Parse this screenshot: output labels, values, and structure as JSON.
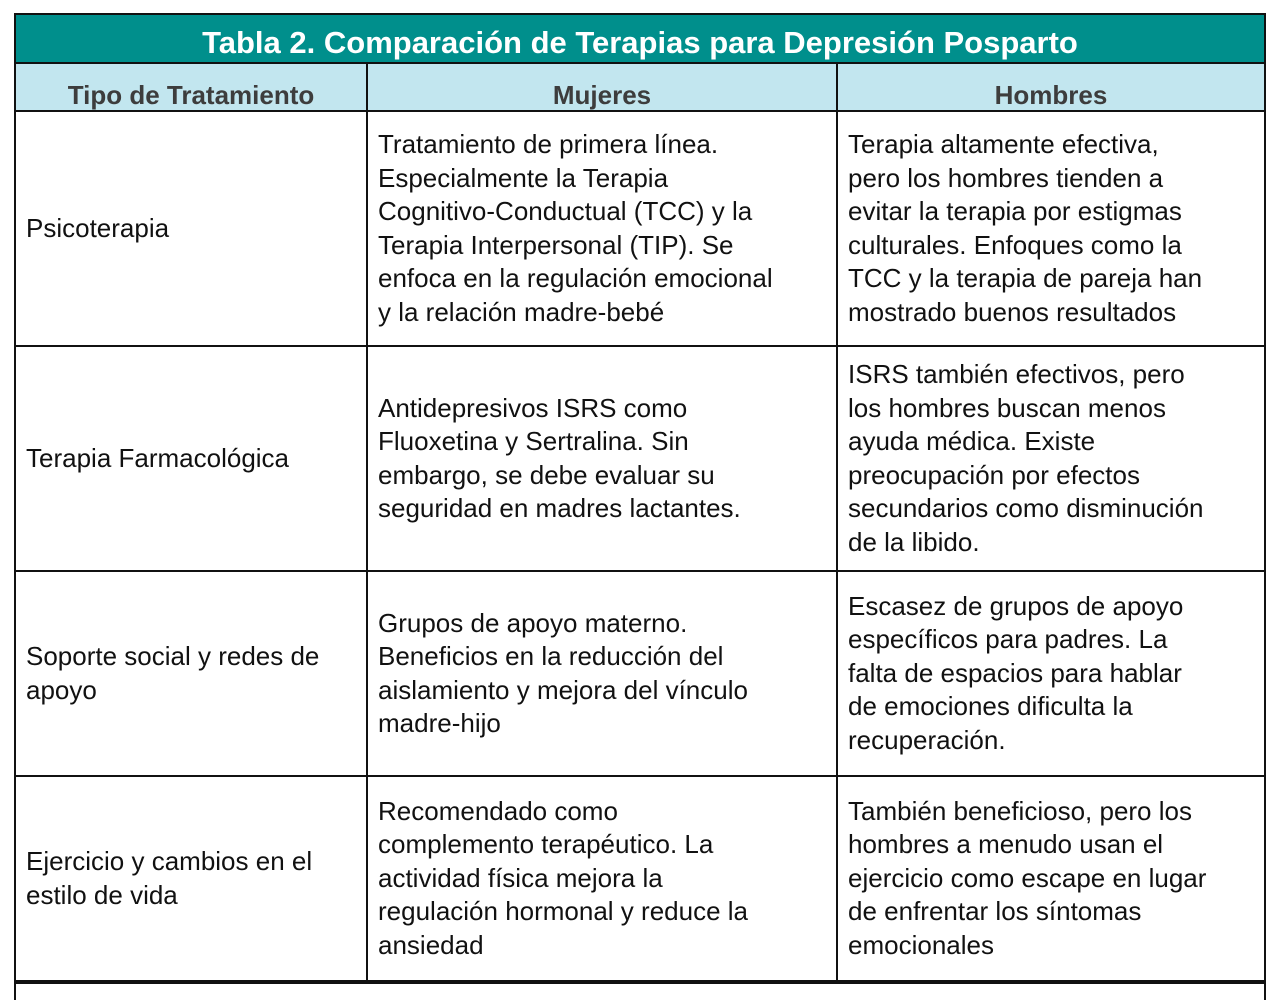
{
  "title": "Tabla 2. Comparación de Terapias para Depresión Posparto",
  "colors": {
    "title_bg": "#008f8c",
    "header_bg": "#c2e6ef"
  },
  "headers": [
    "Tipo de Tratamiento",
    "Mujeres",
    "Hombres"
  ],
  "rows": [
    {
      "height": 235,
      "cells": [
        [
          "Psicoterapia"
        ],
        [
          "Tratamiento de primera línea.",
          "Especialmente la Terapia",
          "Cognitivo-Conductual (TCC) y la",
          "Terapia Interpersonal (TIP). Se",
          "enfoca en la regulación emocional",
          "y la relación madre-bebé"
        ],
        [
          "Terapia altamente efectiva,",
          "pero los hombres tienden a",
          "evitar la terapia por estigmas",
          "culturales. Enfoques como la",
          "TCC y la terapia de pareja han",
          "mostrado buenos resultados"
        ]
      ]
    },
    {
      "height": 225,
      "cells": [
        [
          "Terapia Farmacológica"
        ],
        [
          "Antidepresivos ISRS como",
          "Fluoxetina y Sertralina. Sin",
          "embargo, se debe evaluar su",
          "seguridad en madres lactantes."
        ],
        [
          "ISRS también efectivos, pero",
          "los hombres buscan menos",
          "ayuda médica. Existe",
          "preocupación por efectos",
          "secundarios como disminución",
          "de la libido."
        ]
      ]
    },
    {
      "height": 205,
      "cells": [
        [
          "Soporte social y redes de",
          "apoyo"
        ],
        [
          "Grupos de apoyo materno.",
          "Beneficios en la reducción del",
          "aislamiento y mejora del vínculo",
          "madre-hijo"
        ],
        [
          "Escasez de grupos de apoyo",
          "específicos para padres. La",
          "falta de espacios para hablar",
          "de emociones dificulta la",
          "recuperación."
        ]
      ]
    },
    {
      "height": 205,
      "cells": [
        [
          "Ejercicio y cambios en el",
          "estilo de vida"
        ],
        [
          "Recomendado como",
          "complemento terapéutico. La",
          "actividad física mejora la",
          "regulación hormonal y reduce la",
          "ansiedad"
        ],
        [
          "También beneficioso, pero los",
          "hombres a menudo usan el",
          "ejercicio como escape en lugar",
          "de enfrentar los síntomas",
          "emocionales"
        ]
      ]
    }
  ]
}
